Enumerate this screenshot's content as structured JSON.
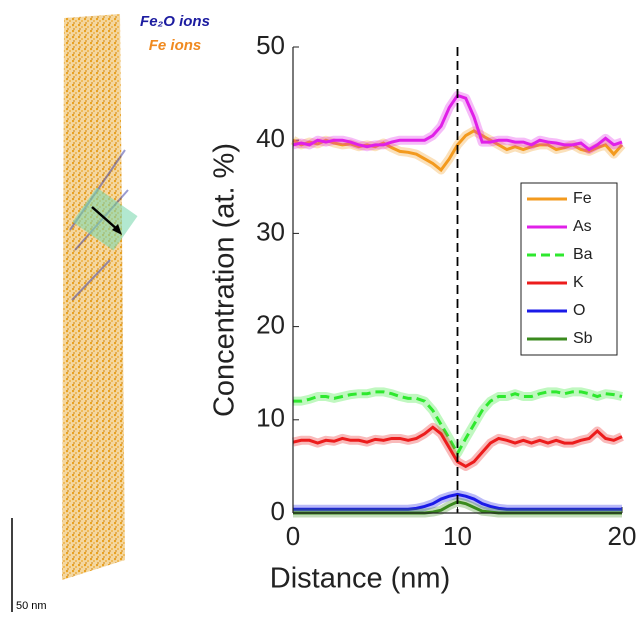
{
  "reconstruction": {
    "legend": [
      "Fe₂O ions",
      "Fe ions"
    ],
    "scale_bar": "50 nm"
  },
  "chart_data": {
    "type": "line",
    "x_label": "Distance (nm)",
    "y_label": "Concentration (at. %)",
    "x": [
      0,
      0.5,
      1,
      1.5,
      2,
      2.5,
      3,
      3.5,
      4,
      4.5,
      5,
      5.5,
      6,
      6.5,
      7,
      7.5,
      8,
      8.5,
      9,
      9.5,
      10,
      10.5,
      11,
      11.5,
      12,
      12.5,
      13,
      13.5,
      14,
      14.5,
      15,
      15.5,
      16,
      16.5,
      17,
      17.5,
      18,
      18.5,
      19,
      19.5,
      20
    ],
    "series": [
      {
        "name": "Fe",
        "color": "#f39a1e",
        "dash": false,
        "values": [
          40,
          39.5,
          39.8,
          39.6,
          40,
          39.7,
          39.5,
          39.6,
          39.3,
          39.5,
          39.3,
          39.7,
          39.2,
          38.8,
          38.7,
          38.5,
          38,
          37.5,
          36.8,
          38,
          39.5,
          40.5,
          41,
          40.5,
          40,
          39.5,
          39,
          39.3,
          39,
          39.3,
          39.5,
          39.5,
          39,
          39.2,
          39.5,
          39,
          38.8,
          39.2,
          39.5,
          38.5,
          39.5
        ]
      },
      {
        "name": "As",
        "color": "#e020e8",
        "dash": false,
        "values": [
          39.5,
          39.7,
          39.5,
          40,
          39.8,
          40,
          40,
          39.8,
          39.5,
          39.3,
          39.5,
          39.5,
          39.8,
          40,
          40,
          40,
          40,
          40.5,
          41.5,
          43.5,
          44.8,
          44.5,
          42.5,
          39.8,
          39.8,
          40,
          40,
          39.8,
          39.8,
          39.5,
          40,
          39.8,
          39.7,
          39.5,
          39.5,
          39.7,
          39,
          39.5,
          40.2,
          39.5,
          39.8
        ]
      },
      {
        "name": "Ba",
        "color": "#2ee82e",
        "dash": true,
        "values": [
          12,
          12,
          12.2,
          12.5,
          12.5,
          12.3,
          12.5,
          12.7,
          12.8,
          12.8,
          13,
          13,
          12.8,
          12.5,
          12.3,
          12.3,
          12,
          11,
          9.5,
          8,
          6.4,
          8,
          9.5,
          11,
          12,
          12.5,
          12.5,
          12.8,
          12.5,
          12.5,
          12.8,
          13,
          13,
          12.8,
          13,
          13,
          12.8,
          12.5,
          12.8,
          12.7,
          12.5
        ]
      },
      {
        "name": "K",
        "color": "#ec1c1c",
        "dash": false,
        "values": [
          7.6,
          7.8,
          7.8,
          7.5,
          7.8,
          7.7,
          8,
          7.8,
          7.8,
          7.6,
          7.9,
          7.8,
          8,
          8,
          7.8,
          8,
          8.5,
          9.2,
          8.5,
          7,
          5.5,
          5,
          5.5,
          6.5,
          7.5,
          8,
          7.8,
          7.5,
          7.8,
          7.5,
          7.8,
          7.5,
          7.8,
          7.5,
          7.5,
          7.8,
          8,
          8.8,
          8,
          7.8,
          8.2
        ]
      },
      {
        "name": "O",
        "color": "#1a1ae8",
        "dash": false,
        "values": [
          0.4,
          0.4,
          0.4,
          0.4,
          0.4,
          0.4,
          0.4,
          0.4,
          0.4,
          0.4,
          0.4,
          0.4,
          0.4,
          0.4,
          0.4,
          0.5,
          0.7,
          1,
          1.5,
          1.8,
          2,
          1.8,
          1.5,
          1,
          0.7,
          0.5,
          0.4,
          0.4,
          0.4,
          0.4,
          0.4,
          0.4,
          0.4,
          0.4,
          0.4,
          0.4,
          0.4,
          0.4,
          0.4,
          0.4,
          0.4
        ]
      },
      {
        "name": "Sb",
        "color": "#3a8a1e",
        "dash": false,
        "values": [
          0,
          0,
          0,
          0,
          0,
          0,
          0,
          0,
          0,
          0,
          0,
          0,
          0,
          0,
          0,
          0,
          0,
          0.1,
          0.3,
          0.8,
          1.2,
          1,
          0.6,
          0.2,
          0.1,
          0,
          0,
          0,
          0,
          0,
          0,
          0,
          0,
          0,
          0,
          0,
          0,
          0,
          0,
          0,
          0
        ]
      }
    ],
    "xlim": [
      0,
      20
    ],
    "xticks": [
      0,
      10,
      20
    ],
    "ylim": [
      0,
      50
    ],
    "yticks": [
      0,
      10,
      20,
      30,
      40,
      50
    ],
    "vline": 10,
    "legend": "right"
  }
}
